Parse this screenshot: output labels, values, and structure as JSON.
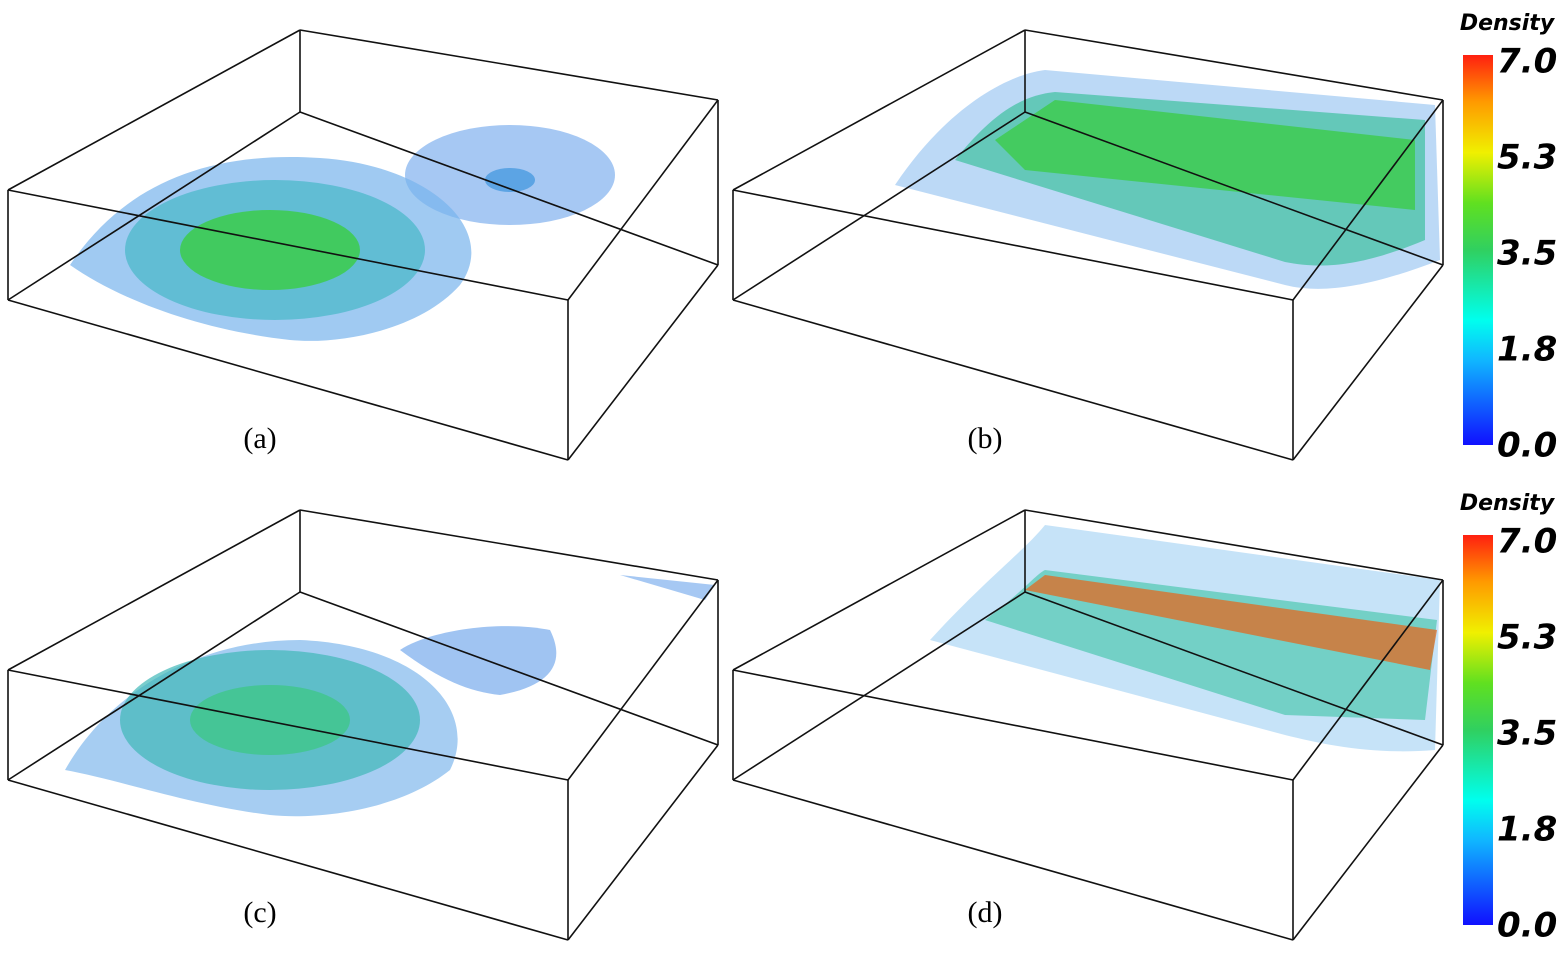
{
  "panels": [
    {
      "label": "(a)"
    },
    {
      "label": "(b)"
    },
    {
      "label": "(c)"
    },
    {
      "label": "(d)"
    }
  ],
  "colorbars": [
    {
      "title": "Density",
      "ticks": [
        "7.0",
        "5.3",
        "3.5",
        "1.8",
        "0.0"
      ]
    },
    {
      "title": "Density",
      "ticks": [
        "7.0",
        "5.3",
        "3.5",
        "1.8",
        "0.0"
      ]
    }
  ]
}
